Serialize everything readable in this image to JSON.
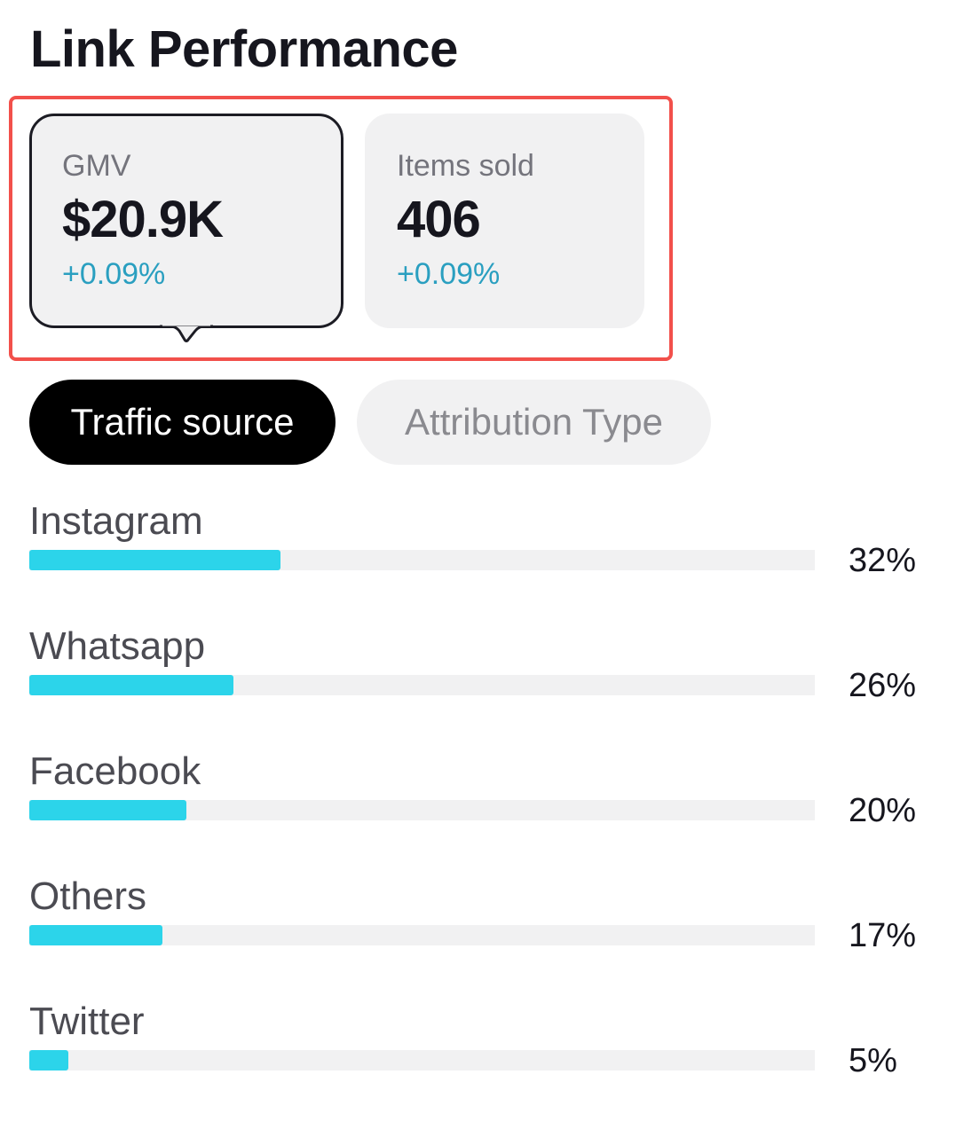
{
  "title": "Link Performance",
  "metrics": [
    {
      "label": "GMV",
      "value": "$20.9K",
      "change": "+0.09%",
      "selected": true
    },
    {
      "label": "Items sold",
      "value": "406",
      "change": "+0.09%",
      "selected": false
    }
  ],
  "tabs": [
    {
      "label": "Traffic source",
      "active": true
    },
    {
      "label": "Attribution Type",
      "active": false
    }
  ],
  "traffic_sources": [
    {
      "name": "Instagram",
      "percent_label": "32%",
      "share": 32
    },
    {
      "name": "Whatsapp",
      "percent_label": "26%",
      "share": 26
    },
    {
      "name": "Facebook",
      "percent_label": "20%",
      "share": 20
    },
    {
      "name": "Others",
      "percent_label": "17%",
      "share": 17
    },
    {
      "name": "Twitter",
      "percent_label": "5%",
      "share": 5
    }
  ],
  "colors": {
    "bar_fill": "#2cd4ea",
    "bar_track": "#f1f1f2",
    "change_positive": "#2a9fc0",
    "highlight": "#f2504b"
  }
}
